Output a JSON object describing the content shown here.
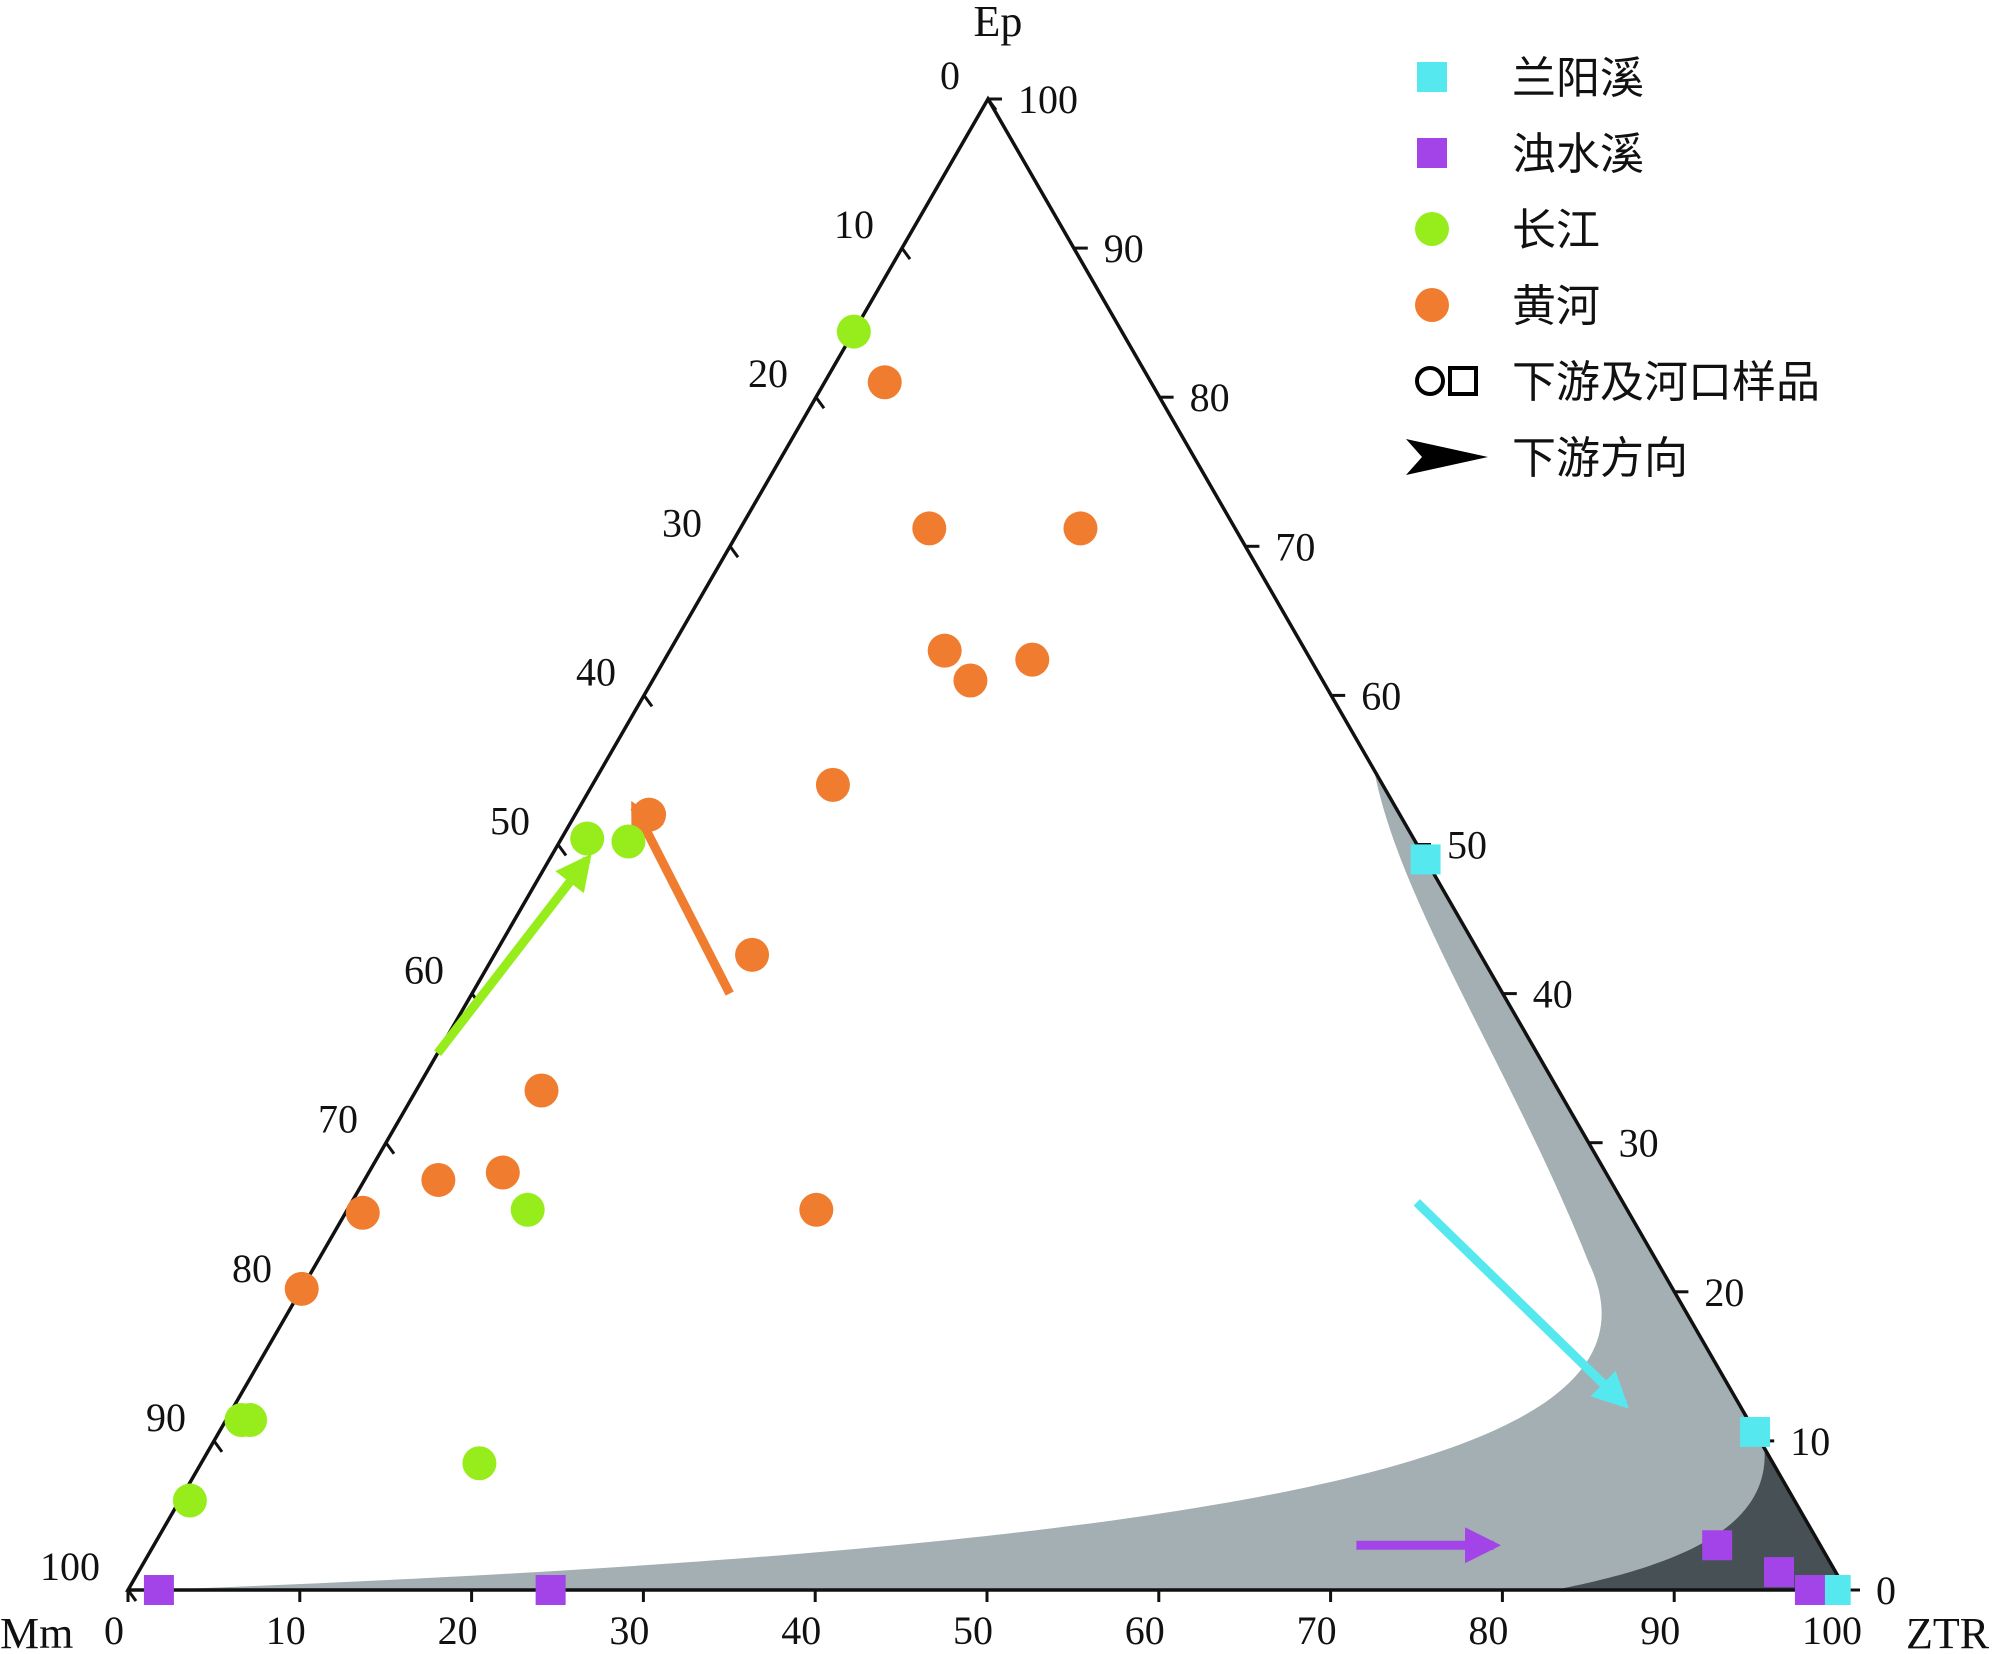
{
  "chart_data": {
    "type": "scatter",
    "subtype": "ternary",
    "axes": {
      "bottom": {
        "label": "Mm",
        "label_end": "ZTR",
        "ticks": [
          0,
          10,
          20,
          30,
          40,
          50,
          60,
          70,
          80,
          90,
          100
        ],
        "tick_labels": [
          "0",
          "10",
          "20",
          "30",
          "40",
          "50",
          "60",
          "70",
          "80",
          "90",
          "100"
        ]
      },
      "left": {
        "label": "Ep",
        "ticks": [
          0,
          10,
          20,
          30,
          40,
          50,
          60,
          70,
          80,
          90,
          100
        ],
        "tick_labels": [
          "0",
          "10",
          "20",
          "30",
          "40",
          "50",
          "60",
          "70",
          "80",
          "90",
          "100"
        ]
      },
      "right": {
        "ticks": [
          0,
          10,
          20,
          30,
          40,
          50,
          60,
          70,
          80,
          90,
          100
        ],
        "tick_labels": [
          "0",
          "10",
          "20",
          "30",
          "40",
          "50",
          "60",
          "70",
          "80",
          "90",
          "100"
        ]
      }
    },
    "corners": {
      "top": "Ep",
      "left": "Mm",
      "right": "ZTR"
    },
    "coordinate_note_units": "percent",
    "regions": [
      {
        "fill": "#a3afb3",
        "description_shown": false
      },
      {
        "fill": "#465055",
        "description_shown": false
      }
    ],
    "series": [
      {
        "name": "兰阳溪",
        "marker": "square",
        "color": "#55e8ef",
        "points": [
          {
            "ep": 49.0,
            "ztr": 51.0
          },
          {
            "ep": 10.6,
            "ztr": 89.4
          },
          {
            "ep": 0.0,
            "ztr": 99.4
          }
        ]
      },
      {
        "name": "浊水溪",
        "marker": "square",
        "color": "#a344e8",
        "points": [
          {
            "ep": 0.0,
            "ztr": 1.8
          },
          {
            "ep": 0.0,
            "ztr": 24.6
          },
          {
            "ep": 3.0,
            "ztr": 91.0
          },
          {
            "ep": 1.2,
            "ztr": 95.5
          },
          {
            "ep": 0.0,
            "ztr": 97.9
          }
        ]
      },
      {
        "name": "长江",
        "marker": "circle",
        "color": "#96ed1b",
        "points": [
          {
            "ep": 84.4,
            "ztr": 0.0
          },
          {
            "ep": 50.4,
            "ztr": 1.5
          },
          {
            "ep": 50.2,
            "ztr": 4.0
          },
          {
            "ep": 25.5,
            "ztr": 10.5
          },
          {
            "ep": 11.4,
            "ztr": 0.9
          },
          {
            "ep": 11.4,
            "ztr": 1.4
          },
          {
            "ep": 6.0,
            "ztr": 0.6
          },
          {
            "ep": 8.5,
            "ztr": 16.2
          }
        ]
      },
      {
        "name": "黄河",
        "marker": "circle",
        "color": "#f07d2f",
        "points": [
          {
            "ep": 81.0,
            "ztr": 3.5
          },
          {
            "ep": 71.2,
            "ztr": 11.0
          },
          {
            "ep": 71.2,
            "ztr": 19.8
          },
          {
            "ep": 63.0,
            "ztr": 16.0
          },
          {
            "ep": 62.4,
            "ztr": 21.4
          },
          {
            "ep": 61.0,
            "ztr": 18.5
          },
          {
            "ep": 54.0,
            "ztr": 14.0
          },
          {
            "ep": 52.0,
            "ztr": 4.3
          },
          {
            "ep": 42.6,
            "ztr": 15.0
          },
          {
            "ep": 33.5,
            "ztr": 7.3
          },
          {
            "ep": 28.0,
            "ztr": 7.8
          },
          {
            "ep": 27.5,
            "ztr": 4.3
          },
          {
            "ep": 25.3,
            "ztr": 1.0
          },
          {
            "ep": 25.5,
            "ztr": 27.3
          },
          {
            "ep": 20.2,
            "ztr": 0.0
          }
        ]
      }
    ],
    "arrows": [
      {
        "color": "#96ed1b",
        "from": {
          "ep": 36.0,
          "ztr": 0.0
        },
        "to": {
          "ep": 49.0,
          "ztr": 2.2
        }
      },
      {
        "color": "#f07d2f",
        "from": {
          "ep": 40.0,
          "ztr": 15.0
        },
        "to": {
          "ep": 52.5,
          "ztr": 3.2
        }
      },
      {
        "color": "#55e8ef",
        "from": {
          "ep": 26.0,
          "ztr": 62.0
        },
        "to": {
          "ep": 12.5,
          "ztr": 80.8
        }
      },
      {
        "color": "#a344e8",
        "from": {
          "ep": 3.0,
          "ztr": 70.0
        },
        "to": {
          "ep": 3.0,
          "ztr": 78.0
        }
      }
    ],
    "legend": {
      "placement": "top-right",
      "entries": [
        {
          "label": "兰阳溪",
          "marker": "square",
          "color": "#55e8ef"
        },
        {
          "label": "浊水溪",
          "marker": "square",
          "color": "#a344e8"
        },
        {
          "label": "长江",
          "marker": "circle",
          "color": "#96ed1b"
        },
        {
          "label": "黄河",
          "marker": "circle",
          "color": "#f07d2f"
        },
        {
          "label": "下游及河口样品",
          "marker": "hollow-circle-square",
          "color": "#000000"
        },
        {
          "label": "下游方向",
          "marker": "arrow",
          "color": "#000000"
        }
      ]
    },
    "grid": false
  }
}
